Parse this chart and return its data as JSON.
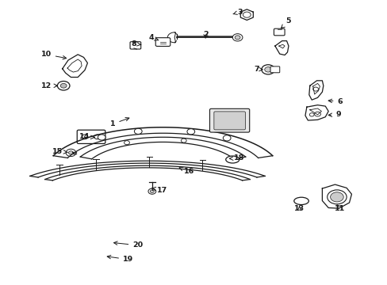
{
  "bg_color": "#ffffff",
  "line_color": "#1a1a1a",
  "label_positions": {
    "1": [
      0.29,
      0.565,
      0.34,
      0.59
    ],
    "2": [
      0.53,
      0.88,
      0.53,
      0.865
    ],
    "3": [
      0.62,
      0.96,
      0.595,
      0.95
    ],
    "4": [
      0.39,
      0.87,
      0.415,
      0.857
    ],
    "5": [
      0.745,
      0.928,
      0.72,
      0.895
    ],
    "6": [
      0.878,
      0.645,
      0.84,
      0.648
    ],
    "7": [
      0.662,
      0.758,
      0.68,
      0.757
    ],
    "8": [
      0.345,
      0.848,
      0.37,
      0.843
    ],
    "9": [
      0.873,
      0.598,
      0.84,
      0.596
    ],
    "10": [
      0.118,
      0.81,
      0.178,
      0.795
    ],
    "11": [
      0.878,
      0.268,
      0.865,
      0.288
    ],
    "12": [
      0.118,
      0.7,
      0.155,
      0.7
    ],
    "13": [
      0.773,
      0.268,
      0.773,
      0.285
    ],
    "14": [
      0.218,
      0.52,
      0.25,
      0.517
    ],
    "15": [
      0.148,
      0.468,
      0.18,
      0.465
    ],
    "16": [
      0.488,
      0.398,
      0.455,
      0.415
    ],
    "17": [
      0.418,
      0.332,
      0.39,
      0.34
    ],
    "18": [
      0.618,
      0.445,
      0.59,
      0.443
    ],
    "19": [
      0.33,
      0.088,
      0.268,
      0.1
    ],
    "20": [
      0.355,
      0.138,
      0.285,
      0.148
    ]
  }
}
